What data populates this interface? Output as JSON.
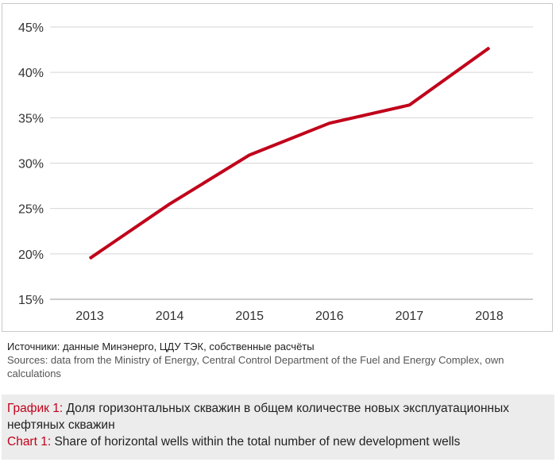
{
  "chart_data": {
    "type": "line",
    "categories": [
      "2013",
      "2014",
      "2015",
      "2016",
      "2017",
      "2018"
    ],
    "series": [
      {
        "values": [
          19.5,
          25.5,
          30.9,
          34.4,
          36.4,
          42.7
        ],
        "color": "#c0001a"
      }
    ],
    "ylim": [
      15,
      45
    ],
    "yticks": [
      15,
      20,
      25,
      30,
      35,
      40,
      45
    ],
    "ytick_labels": [
      "15%",
      "20%",
      "25%",
      "30%",
      "35%",
      "40%",
      "45%"
    ],
    "grid": "horizontal",
    "title": "",
    "xlabel": "",
    "ylabel": ""
  },
  "sources": {
    "ru": "Источники: данные Минэнерго, ЦДУ ТЭК, собственные расчёты",
    "en": "Sources: data from the Ministry of Energy, Central Control Department of the Fuel and Energy Complex, own calculations"
  },
  "caption": {
    "ru_label": "График 1:",
    "ru_text": " Доля горизонтальных скважин в общем количестве новых эксплуатационных нефтяных скважин",
    "en_label": "Chart 1:",
    "en_text": " Share of horizontal wells within the total number of new development wells"
  }
}
